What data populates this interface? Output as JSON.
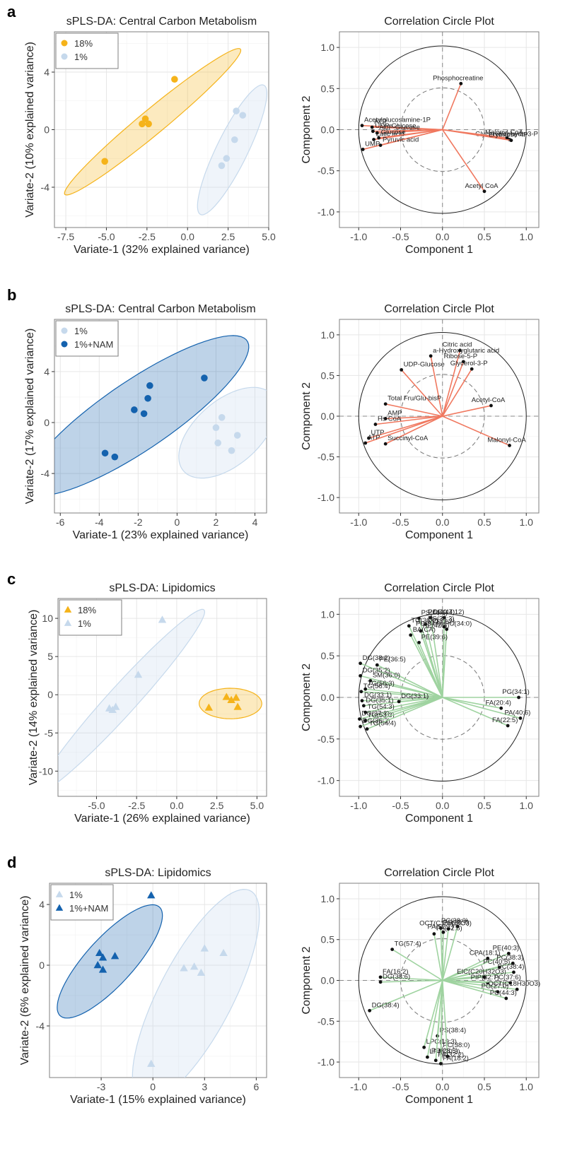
{
  "chart_data": [
    {
      "id": "a-scores",
      "type": "scatter",
      "panel_label": "a",
      "title": "sPLS-DA: Central Carbon Metabolism",
      "xlabel": "Variate-1 (32% explained variance)",
      "ylabel": "Variate-2 (10% explained variance)",
      "xlim": [
        -8.2,
        5.0
      ],
      "ylim": [
        -6.8,
        6.8
      ],
      "xticks": [
        -7.5,
        -5.0,
        -2.5,
        0.0,
        2.5,
        5.0
      ],
      "xtick_labels": [
        "-7.5",
        "-5.0",
        "-2.5",
        "0.0",
        "2.5",
        "5.0"
      ],
      "yticks": [
        -4,
        0,
        4
      ],
      "ytick_labels": [
        "-4",
        "0",
        "4"
      ],
      "grid": true,
      "legend_position": "top-left",
      "series": [
        {
          "name": "18%",
          "color": "#F5B31A",
          "marker": "circle",
          "points": [
            [
              -5.1,
              -2.2
            ],
            [
              -2.8,
              0.4
            ],
            [
              -2.6,
              0.75
            ],
            [
              -2.4,
              0.4
            ],
            [
              -0.8,
              3.5
            ]
          ],
          "ellipse": {
            "center": [
              -2.15,
              0.55
            ],
            "tilt_deg": 43.1,
            "semi_major": 7.4,
            "semi_minor": 0.82
          }
        },
        {
          "name": "1%",
          "color": "#C6D9EC",
          "marker": "circle",
          "points": [
            [
              2.1,
              -2.5
            ],
            [
              2.4,
              -2.0
            ],
            [
              2.9,
              -0.7
            ],
            [
              3.0,
              1.3
            ],
            [
              3.4,
              1.0
            ]
          ],
          "ellipse": {
            "center": [
              2.75,
              -1.4
            ],
            "tilt_deg": 66.7,
            "semi_major": 4.9,
            "semi_minor": 0.98
          }
        }
      ]
    },
    {
      "id": "a-corr",
      "type": "scatter",
      "subtype": "correlation-circle",
      "title": "Correlation Circle Plot",
      "xlabel": "Component 1",
      "ylabel": "Component 2",
      "xlim": [
        -1.23,
        1.15
      ],
      "ylim": [
        -1.19,
        1.19
      ],
      "xticks": [
        -1.0,
        -0.5,
        0.0,
        0.5,
        1.0
      ],
      "xtick_labels": [
        "-1.0",
        "-0.5",
        "0.0",
        "0.5",
        "1.0"
      ],
      "yticks": [
        -1.0,
        -0.5,
        0.0,
        0.5,
        1.0
      ],
      "ytick_labels": [
        "-1.0",
        "-0.5",
        "0.0",
        "0.5",
        "1.0"
      ],
      "grid": true,
      "inner_radius": 0.5,
      "arrow_color": "#F0785F",
      "variables": [
        {
          "name": "Phosphocreatine",
          "x": 0.22,
          "y": 0.56
        },
        {
          "name": "Acetylglucosamine-1P",
          "x": -0.96,
          "y": 0.05
        },
        {
          "name": "ATP",
          "x": -0.84,
          "y": 0.03
        },
        {
          "name": "UDP-Glucose",
          "x": -0.83,
          "y": -0.02
        },
        {
          "name": "ADP-Glucose",
          "x": -0.78,
          "y": -0.04
        },
        {
          "name": "Latic acid",
          "x": -0.82,
          "y": -0.12
        },
        {
          "name": "Glucose",
          "x": -0.76,
          "y": -0.1
        },
        {
          "name": "UMP",
          "x": -0.95,
          "y": -0.24
        },
        {
          "name": "Pyruvic acid",
          "x": -0.74,
          "y": -0.19
        },
        {
          "name": "Glyceryaldehyde-3-P",
          "x": 0.8,
          "y": -0.12
        },
        {
          "name": "Malonyl CoA",
          "x": 0.77,
          "y": -0.1
        },
        {
          "name": "Erythrose-4P",
          "x": 0.82,
          "y": -0.13
        },
        {
          "name": "Acetyl CoA",
          "x": 0.5,
          "y": -0.75
        }
      ]
    },
    {
      "id": "b-scores",
      "type": "scatter",
      "panel_label": "b",
      "title": "sPLS-DA: Central Carbon Metabolism",
      "xlabel": "Variate-1 (23% explained variance)",
      "ylabel": "Variate-2 (17% explained variance)",
      "xlim": [
        -6.3,
        4.6
      ],
      "ylim": [
        -7.1,
        8.1
      ],
      "xticks": [
        -6,
        -4,
        -2,
        0,
        2,
        4
      ],
      "xtick_labels": [
        "-6",
        "-4",
        "-2",
        "0",
        "2",
        "4"
      ],
      "yticks": [
        -4,
        0,
        4
      ],
      "ytick_labels": [
        "-4",
        "0",
        "4"
      ],
      "grid": true,
      "legend_position": "top-left",
      "series": [
        {
          "name": "1%",
          "color": "#C6D9EC",
          "marker": "circle",
          "points": [
            [
              2.0,
              -0.4
            ],
            [
              2.3,
              0.4
            ],
            [
              2.1,
              -1.6
            ],
            [
              2.8,
              -2.2
            ],
            [
              3.1,
              -1.0
            ]
          ],
          "ellipse": {
            "center": [
              2.6,
              -0.8
            ],
            "tilt_deg": 62,
            "semi_major": 3.9,
            "semi_minor": 1.95
          }
        },
        {
          "name": "1%+NAM",
          "color": "#1462AE",
          "marker": "circle",
          "points": [
            [
              -3.7,
              -2.4
            ],
            [
              -3.2,
              -2.7
            ],
            [
              -2.2,
              1.0
            ],
            [
              -1.7,
              0.7
            ],
            [
              -1.5,
              1.9
            ],
            [
              -1.4,
              2.9
            ],
            [
              1.4,
              3.5
            ]
          ],
          "ellipse": {
            "center": [
              -2.05,
              0.55
            ],
            "tilt_deg": 48,
            "semi_major": 8.2,
            "semi_minor": 2.25
          }
        }
      ]
    },
    {
      "id": "b-corr",
      "type": "scatter",
      "subtype": "correlation-circle",
      "title": "Correlation Circle Plot",
      "xlabel": "Component 1",
      "ylabel": "Component 2",
      "xlim": [
        -1.23,
        1.15
      ],
      "ylim": [
        -1.19,
        1.19
      ],
      "xticks": [
        -1.0,
        -0.5,
        0.0,
        0.5,
        1.0
      ],
      "xtick_labels": [
        "-1.0",
        "-0.5",
        "0.0",
        "0.5",
        "1.0"
      ],
      "yticks": [
        -1.0,
        -0.5,
        0.0,
        0.5,
        1.0
      ],
      "ytick_labels": [
        "-1.0",
        "-0.5",
        "0.0",
        "0.5",
        "1.0"
      ],
      "grid": true,
      "inner_radius": 0.5,
      "arrow_color": "#F0785F",
      "variables": [
        {
          "name": "Citric acid",
          "x": 0.21,
          "y": 0.81
        },
        {
          "name": "a-Hydroxyglutaric acid",
          "x": -0.14,
          "y": 0.74
        },
        {
          "name": "Ribose-5-P",
          "x": 0.25,
          "y": 0.67
        },
        {
          "name": "Glycerol-3-P",
          "x": 0.35,
          "y": 0.58
        },
        {
          "name": "UDP-Glucose",
          "x": -0.49,
          "y": 0.57
        },
        {
          "name": "Total Fru/Glu-bisP",
          "x": -0.68,
          "y": 0.15
        },
        {
          "name": "Acetyl-CoA",
          "x": 0.58,
          "y": 0.13
        },
        {
          "name": "AMP",
          "x": -0.68,
          "y": -0.03
        },
        {
          "name": "Hs-CoA",
          "x": -0.8,
          "y": -0.1
        },
        {
          "name": "UTP",
          "x": -0.88,
          "y": -0.27
        },
        {
          "name": "ATP",
          "x": -0.92,
          "y": -0.33
        },
        {
          "name": "Succinyl-CoA",
          "x": -0.68,
          "y": -0.34
        },
        {
          "name": "Malonyl-CoA",
          "x": 0.8,
          "y": -0.36
        }
      ]
    },
    {
      "id": "c-scores",
      "type": "scatter",
      "panel_label": "c",
      "title": "sPLS-DA: Lipidomics",
      "xlabel": "Variate-1 (26% explained variance)",
      "ylabel": "Variate-2 (14% explained variance)",
      "xlim": [
        -7.4,
        5.6
      ],
      "ylim": [
        -13.3,
        12.6
      ],
      "xticks": [
        -5.0,
        -2.5,
        0.0,
        2.5,
        5.0
      ],
      "xtick_labels": [
        "-5.0",
        "-2.5",
        "0.0",
        "2.5",
        "5.0"
      ],
      "yticks": [
        -10,
        -5,
        0,
        5,
        10
      ],
      "ytick_labels": [
        "-10",
        "-5",
        "0",
        "5",
        "10"
      ],
      "grid": true,
      "legend_position": "top-left",
      "series": [
        {
          "name": "18%",
          "color": "#F5B31A",
          "marker": "triangle",
          "points": [
            [
              2.0,
              -1.7
            ],
            [
              3.1,
              -0.3
            ],
            [
              3.4,
              -0.7
            ],
            [
              3.7,
              -0.4
            ],
            [
              3.8,
              -1.6
            ]
          ],
          "ellipse": {
            "center": [
              3.35,
              -1.15
            ],
            "tilt_deg": 6,
            "semi_major": 1.95,
            "semi_minor": 2.0
          }
        },
        {
          "name": "1%",
          "color": "#C6D9EC",
          "marker": "triangle",
          "points": [
            [
              -4.2,
              -1.8
            ],
            [
              -4.0,
              -2.0
            ],
            [
              -3.8,
              -1.6
            ],
            [
              -2.4,
              2.6
            ],
            [
              -0.9,
              9.8
            ]
          ],
          "ellipse": {
            "center": [
              -3.4,
              -0.7
            ],
            "tilt_deg": 67,
            "semi_major": 12.9,
            "semi_minor": 1.1
          }
        }
      ]
    },
    {
      "id": "c-corr",
      "type": "scatter",
      "subtype": "correlation-circle",
      "title": "Correlation Circle Plot",
      "xlabel": "Component 1",
      "ylabel": "Component 2",
      "xlim": [
        -1.23,
        1.15
      ],
      "ylim": [
        -1.19,
        1.19
      ],
      "xticks": [
        -1.0,
        -0.5,
        0.0,
        0.5,
        1.0
      ],
      "xtick_labels": [
        "-1.0",
        "-0.5",
        "0.0",
        "0.5",
        "1.0"
      ],
      "yticks": [
        -1.0,
        -0.5,
        0.0,
        0.5,
        1.0
      ],
      "ytick_labels": [
        "-1.0",
        "-0.5",
        "0.0",
        "0.5",
        "1.0"
      ],
      "grid": true,
      "inner_radius": 0.5,
      "arrow_color": "#9FD3A0",
      "variables": [
        {
          "name": "PS(40:6)",
          "x": -0.28,
          "y": 0.95
        },
        {
          "name": "DG(44:12)",
          "x": -0.14,
          "y": 0.96
        },
        {
          "name": "PC(40:7)",
          "x": 0.02,
          "y": 0.96
        },
        {
          "name": "PS(38:3)",
          "x": -0.2,
          "y": 0.88
        },
        {
          "name": "PC(32:2)",
          "x": 0.02,
          "y": 0.85
        },
        {
          "name": "TG(36:0)",
          "x": -0.4,
          "y": 0.86
        },
        {
          "name": "PC(34:0)-PC(34:0)",
          "x": 0.05,
          "y": 0.82
        },
        {
          "name": "PE(42:6)",
          "x": -0.26,
          "y": 0.8
        },
        {
          "name": "BA(CA)",
          "x": -0.38,
          "y": 0.75
        },
        {
          "name": "PE(39:6)",
          "x": -0.28,
          "y": 0.66
        },
        {
          "name": "DG(38:2)",
          "x": -0.98,
          "y": 0.41
        },
        {
          "name": "PE(36:5)",
          "x": -0.78,
          "y": 0.39
        },
        {
          "name": "DG(35:2)",
          "x": -0.98,
          "y": 0.26
        },
        {
          "name": "SM(36:0)",
          "x": -0.86,
          "y": 0.2
        },
        {
          "name": "TG(56:3)",
          "x": -0.92,
          "y": 0.1
        },
        {
          "name": "TG(56:4)",
          "x": -0.97,
          "y": 0.07
        },
        {
          "name": "DG(33:1)",
          "x": -0.96,
          "y": -0.04
        },
        {
          "name": "DG(35:1)",
          "x": -0.94,
          "y": -0.1
        },
        {
          "name": "DG(33:1)",
          "x": -0.52,
          "y": -0.05
        },
        {
          "name": "TG(54:3)",
          "x": -0.92,
          "y": -0.18
        },
        {
          "name": "DG(37:2)",
          "x": -0.99,
          "y": -0.26
        },
        {
          "name": "TG(53:3)",
          "x": -0.92,
          "y": -0.28
        },
        {
          "name": "DG(36:2)",
          "x": -0.98,
          "y": -0.35
        },
        {
          "name": "TG(54:4)",
          "x": -0.9,
          "y": -0.38
        },
        {
          "name": "PG(34:1)",
          "x": 0.91,
          "y": 0.0
        },
        {
          "name": "FA(20:4)",
          "x": 0.7,
          "y": -0.13
        },
        {
          "name": "PA(40:6)",
          "x": 0.93,
          "y": -0.25
        },
        {
          "name": "FA(22:5)",
          "x": 0.78,
          "y": -0.34
        }
      ]
    },
    {
      "id": "d-scores",
      "type": "scatter",
      "panel_label": "d",
      "title": "sPLS-DA: Lipidomics",
      "xlabel": "Variate-1 (15% explained variance)",
      "ylabel": "Variate-2 (6% explained variance)",
      "xlim": [
        -6.0,
        6.6
      ],
      "ylim": [
        -7.4,
        5.4
      ],
      "xticks": [
        -3,
        0,
        3,
        6
      ],
      "xtick_labels": [
        "-3",
        "0",
        "3",
        "6"
      ],
      "yticks": [
        -4,
        0,
        4
      ],
      "ytick_labels": [
        "-4",
        "0",
        "4"
      ],
      "grid": true,
      "legend_position": "top-left",
      "series": [
        {
          "name": "1%",
          "color": "#C6D9EC",
          "marker": "triangle",
          "points": [
            [
              1.8,
              -0.2
            ],
            [
              2.4,
              -0.1
            ],
            [
              2.8,
              -0.5
            ],
            [
              3.0,
              1.1
            ],
            [
              4.1,
              0.8
            ],
            [
              -0.1,
              -6.5
            ]
          ],
          "ellipse": {
            "center": [
              2.5,
              -2.0
            ],
            "tilt_deg": 66,
            "semi_major": 7.6,
            "semi_minor": 2.2
          }
        },
        {
          "name": "1%+NAM",
          "color": "#1462AE",
          "marker": "triangle",
          "points": [
            [
              -3.2,
              0.0
            ],
            [
              -3.1,
              0.8
            ],
            [
              -2.9,
              0.5
            ],
            [
              -2.9,
              -0.3
            ],
            [
              -2.2,
              0.6
            ],
            [
              -0.1,
              4.6
            ]
          ],
          "ellipse": {
            "center": [
              -2.5,
              0.25
            ],
            "tilt_deg": 52,
            "semi_major": 4.6,
            "semi_minor": 1.45
          }
        }
      ]
    },
    {
      "id": "d-corr",
      "type": "scatter",
      "subtype": "correlation-circle",
      "title": "Correlation Circle Plot",
      "xlabel": "Component 1",
      "ylabel": "Component 2",
      "xlim": [
        -1.23,
        1.15
      ],
      "ylim": [
        -1.19,
        1.19
      ],
      "xticks": [
        -1.0,
        -0.5,
        0.0,
        0.5,
        1.0
      ],
      "xtick_labels": [
        "-1.0",
        "-0.5",
        "0.0",
        "0.5",
        "1.0"
      ],
      "yticks": [
        -1.0,
        -0.5,
        0.0,
        0.5,
        1.0
      ],
      "ytick_labels": [
        "-1.0",
        "-0.5",
        "0.0",
        "0.5",
        "1.0"
      ],
      "grid": true,
      "inner_radius": 0.5,
      "arrow_color": "#9FD3A0",
      "variables": [
        {
          "name": "PS(38:7)",
          "x": -0.02,
          "y": 0.64
        },
        {
          "name": "PC(38:0)",
          "x": 0.18,
          "y": 0.66
        },
        {
          "name": "PA(52:8)",
          "x": -0.1,
          "y": 0.57
        },
        {
          "name": "OCT(C18H28O3)",
          "x": 0.07,
          "y": 0.63
        },
        {
          "name": "PA(52:7)",
          "x": 0.01,
          "y": 0.59
        },
        {
          "name": "TG(57:4)",
          "x": -0.6,
          "y": 0.38
        },
        {
          "name": "CPA(18:1)",
          "x": 0.54,
          "y": 0.27
        },
        {
          "name": "PE(40:3)",
          "x": 0.79,
          "y": 0.33
        },
        {
          "name": "PC(38:3)",
          "x": 0.84,
          "y": 0.21
        },
        {
          "name": "PC(40:5)",
          "x": 0.68,
          "y": 0.16
        },
        {
          "name": "PC(38:4)",
          "x": 0.85,
          "y": 0.1
        },
        {
          "name": "EIC(C20H32O3)",
          "x": 0.5,
          "y": 0.04
        },
        {
          "name": "PIP(32:7)",
          "x": 0.54,
          "y": -0.03
        },
        {
          "name": "PC(37:6)",
          "x": 0.81,
          "y": -0.03
        },
        {
          "name": "OCT(C18H30O3)",
          "x": 0.89,
          "y": -0.11
        },
        {
          "name": "PG(27:0)",
          "x": 0.66,
          "y": -0.14
        },
        {
          "name": "PC(44:3)",
          "x": 0.76,
          "y": -0.22
        },
        {
          "name": "FA(16:2)",
          "x": -0.74,
          "y": 0.04
        },
        {
          "name": "DG(38:6)",
          "x": -0.74,
          "y": -0.02
        },
        {
          "name": "DG(38:4)",
          "x": -0.87,
          "y": -0.37
        },
        {
          "name": "PS(38:4)",
          "x": -0.06,
          "y": -0.68
        },
        {
          "name": "LPC(19:3)",
          "x": -0.22,
          "y": -0.82
        },
        {
          "name": "PC(38:0)",
          "x": -0.02,
          "y": -0.86
        },
        {
          "name": "LPC(20:3)",
          "x": -0.18,
          "y": -0.94
        },
        {
          "name": "PC(28:5)",
          "x": 0.06,
          "y": -0.93
        },
        {
          "name": "PA(32:2)",
          "x": -0.08,
          "y": -0.98
        },
        {
          "name": "FA(18:2)",
          "x": -0.02,
          "y": -1.02
        }
      ]
    }
  ]
}
